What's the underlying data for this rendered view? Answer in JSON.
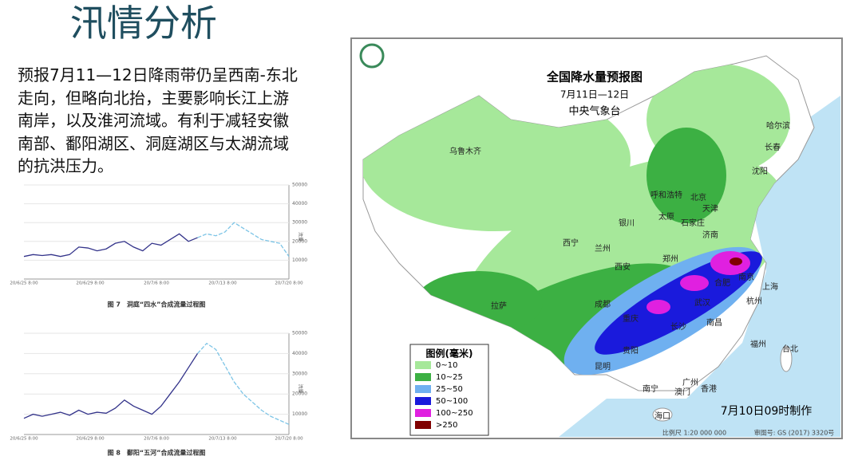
{
  "title": "汛情分析",
  "body": "预报7月11—12日降雨带仍呈西南-东北走向，但略向北抬，主要影响长江上游南岸，以及淮河流域。有利于减轻安徽南部、鄱阳湖区、洞庭湖区与太湖流域的抗洪压力。",
  "figures": [
    {
      "caption": "图 7　洞庭“四水”合成流量过程图",
      "y_label": "流量",
      "ylim": [
        0,
        50000
      ],
      "yticks": [
        10000,
        20000,
        30000,
        40000,
        50000
      ],
      "xticks": [
        "20/6/25 8:00",
        "20/6/29 8:00",
        "20/7/6 8:00",
        "20/7/13 8:00",
        "20/7/20 8:00"
      ],
      "series": [
        {
          "color": "#33338a",
          "values": [
            12000,
            13000,
            12500,
            13000,
            12000,
            13000,
            17000,
            16500,
            15000,
            16000,
            19000,
            20000,
            17000,
            15000,
            19000,
            18000,
            21000,
            24000,
            20000,
            22000,
            null,
            null,
            null,
            null,
            null,
            null,
            null,
            null,
            null,
            null
          ]
        },
        {
          "color": "#7cc4e6",
          "values": [
            null,
            null,
            null,
            null,
            null,
            null,
            null,
            null,
            null,
            null,
            null,
            null,
            null,
            null,
            null,
            null,
            null,
            null,
            null,
            22000,
            24000,
            23000,
            25000,
            30000,
            27000,
            24000,
            21000,
            20000,
            19000,
            12000
          ]
        }
      ]
    },
    {
      "caption": "图 8　鄱阳“五河”合成流量过程图",
      "y_label": "流量",
      "ylim": [
        0,
        50000
      ],
      "yticks": [
        10000,
        20000,
        30000,
        40000,
        50000
      ],
      "xticks": [
        "20/6/25 8:00",
        "20/6/29 8:00",
        "20/7/6 8:00",
        "20/7/13 8:00",
        "20/7/20 8:00"
      ],
      "series": [
        {
          "color": "#33338a",
          "values": [
            8000,
            10000,
            9000,
            10000,
            11000,
            9500,
            12000,
            10000,
            11000,
            10500,
            13000,
            17000,
            14000,
            12000,
            10000,
            14000,
            20000,
            26000,
            33000,
            40000,
            null,
            null,
            null,
            null,
            null,
            null,
            null,
            null,
            null,
            null
          ]
        },
        {
          "color": "#7cc4e6",
          "values": [
            null,
            null,
            null,
            null,
            null,
            null,
            null,
            null,
            null,
            null,
            null,
            null,
            null,
            null,
            null,
            null,
            null,
            null,
            null,
            40000,
            45000,
            42000,
            34000,
            26000,
            20000,
            16000,
            12000,
            9000,
            7000,
            5000
          ]
        }
      ]
    }
  ],
  "map": {
    "title": "全国降水量预报图",
    "subtitle": "7月11日—12日",
    "issuer": "中央气象台",
    "legend_title": "图例(毫米)",
    "legend": [
      {
        "label": "0~10",
        "color": "#a6e89a"
      },
      {
        "label": "10~25",
        "color": "#3cb043"
      },
      {
        "label": "25~50",
        "color": "#6fb0f0"
      },
      {
        "label": "50~100",
        "color": "#1a1adc"
      },
      {
        "label": "100~250",
        "color": "#e020e0"
      },
      {
        "label": ">250",
        "color": "#800000"
      }
    ],
    "issued": "7月10日09时制作",
    "scale": "比例尺 1:20 000 000",
    "review": "审图号: GS (2017) 3320号",
    "cities": [
      "哈尔滨",
      "长春",
      "沈阳",
      "乌鲁木齐",
      "呼和浩特",
      "北京",
      "天津",
      "石家庄",
      "太原",
      "银川",
      "西宁",
      "兰州",
      "济南",
      "郑州",
      "西安",
      "合肥",
      "南京",
      "上海",
      "杭州",
      "武汉",
      "成都",
      "重庆",
      "拉萨",
      "长沙",
      "南昌",
      "贵阳",
      "昆明",
      "福州",
      "台北",
      "南宁",
      "广州",
      "澳门",
      "香港",
      "海口"
    ]
  }
}
